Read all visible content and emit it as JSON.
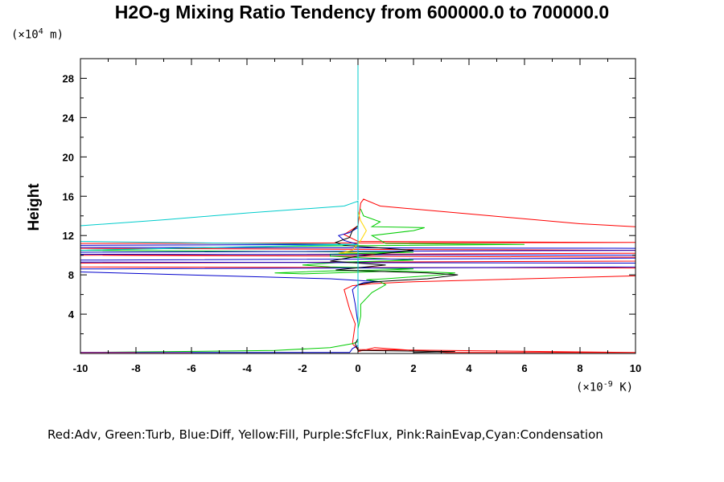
{
  "chart_data": {
    "type": "line",
    "title": "H2O-g Mixing Ratio Tendency from 600000.0 to 700000.0",
    "ylabel": "Height",
    "y_unit_prefix": "(×10",
    "y_unit_exp": "4",
    "y_unit_suffix": " m)",
    "x_unit_prefix": "(×10",
    "x_unit_exp": "-9",
    "x_unit_suffix": " K)",
    "xlim": [
      -10,
      10
    ],
    "ylim": [
      0,
      30
    ],
    "x_ticks": [
      "-10",
      "-8",
      "-6",
      "-4",
      "-2",
      "0",
      "2",
      "4",
      "6",
      "8",
      "10"
    ],
    "x_tick_values": [
      -10,
      -8,
      -6,
      -4,
      -2,
      0,
      2,
      4,
      6,
      8,
      10
    ],
    "y_ticks": [
      "4",
      "8",
      "12",
      "16",
      "20",
      "24",
      "28"
    ],
    "y_tick_values": [
      4,
      8,
      12,
      16,
      20,
      24,
      28
    ],
    "legend_text": "Red:Adv, Green:Turb, Blue:Diff, Yellow:Fill, Purple:SfcFlux, Pink:RainEvap,Cyan:Condensation",
    "series": [
      {
        "color": "#ff0000",
        "points": [
          [
            0,
            0.2
          ],
          [
            0.6,
            0.6
          ],
          [
            2,
            0.3
          ],
          [
            3.2,
            0.1
          ],
          [
            10,
            0.1
          ],
          [
            10,
            0.1
          ],
          [
            0,
            0.4
          ],
          [
            -0.2,
            1
          ],
          [
            -0.1,
            3
          ],
          [
            -0.3,
            4.5
          ],
          [
            -0.5,
            6.5
          ],
          [
            -0.2,
            6.9
          ],
          [
            0.5,
            7.1
          ],
          [
            2,
            7.3
          ],
          [
            10,
            7.9
          ],
          [
            10,
            8.7
          ],
          [
            -10,
            8.8
          ],
          [
            -10,
            9.2
          ],
          [
            10,
            9.4
          ],
          [
            10,
            9.8
          ],
          [
            -10,
            10
          ],
          [
            10,
            10.2
          ],
          [
            10,
            10.5
          ],
          [
            -10,
            10.7
          ],
          [
            -10,
            11.2
          ],
          [
            10,
            11.3
          ],
          [
            10,
            11.3
          ],
          [
            0,
            11.4
          ],
          [
            -0.5,
            12.1
          ],
          [
            0,
            13
          ],
          [
            0.1,
            15.3
          ],
          [
            0.2,
            15.7
          ],
          [
            0.8,
            15
          ],
          [
            4,
            14.2
          ],
          [
            6,
            13.7
          ],
          [
            8,
            13.2
          ],
          [
            10,
            12.9
          ]
        ]
      },
      {
        "color": "#00cc00",
        "points": [
          [
            -10,
            0.1
          ],
          [
            -3,
            0.3
          ],
          [
            -1,
            0.6
          ],
          [
            -0.2,
            1
          ],
          [
            0,
            1.2
          ],
          [
            0,
            2.5
          ],
          [
            0.1,
            3.8
          ],
          [
            0.1,
            5
          ],
          [
            0.5,
            6.2
          ],
          [
            1,
            7
          ],
          [
            0.8,
            7.3
          ],
          [
            0.3,
            7.5
          ],
          [
            1,
            7.6
          ],
          [
            3,
            8
          ],
          [
            3.5,
            8.2
          ],
          [
            1.5,
            8.4
          ],
          [
            -2,
            8.1
          ],
          [
            -3,
            8.2
          ],
          [
            -1,
            8.4
          ],
          [
            1,
            8.5
          ],
          [
            2,
            8.6
          ],
          [
            -1,
            8.8
          ],
          [
            -2,
            9
          ],
          [
            -0.5,
            9.3
          ],
          [
            2,
            9.5
          ],
          [
            -1,
            9.9
          ],
          [
            -1,
            10.1
          ],
          [
            2,
            10.3
          ],
          [
            -10,
            10.5
          ],
          [
            -3,
            10.9
          ],
          [
            6,
            11.1
          ],
          [
            1,
            11.2
          ],
          [
            0.5,
            12
          ],
          [
            2,
            12.5
          ],
          [
            2.4,
            12.8
          ],
          [
            0.5,
            12.9
          ],
          [
            0.8,
            13.4
          ],
          [
            0.2,
            14
          ],
          [
            0.1,
            14.7
          ]
        ]
      },
      {
        "color": "#0000cc",
        "points": [
          [
            -10,
            0.1
          ],
          [
            -0.3,
            0.1
          ],
          [
            -0.2,
            0.5
          ],
          [
            0,
            0.8
          ],
          [
            0,
            1
          ],
          [
            0,
            3
          ],
          [
            -0.1,
            5
          ],
          [
            -0.2,
            6.5
          ],
          [
            0,
            7
          ],
          [
            0.2,
            7.2
          ],
          [
            0.8,
            7.3
          ],
          [
            -1,
            7.6
          ],
          [
            -10,
            8.3
          ],
          [
            -10,
            8.6
          ],
          [
            10,
            8.8
          ],
          [
            10,
            9.2
          ],
          [
            -10,
            9.3
          ],
          [
            -10,
            9.5
          ],
          [
            10,
            9.7
          ],
          [
            10,
            10
          ],
          [
            -10,
            10.1
          ],
          [
            -10,
            10.3
          ],
          [
            10,
            10.5
          ],
          [
            10,
            10.7
          ],
          [
            -10,
            10.8
          ],
          [
            -10,
            11
          ],
          [
            0,
            11.1
          ],
          [
            -0.5,
            11.5
          ],
          [
            -0.7,
            12
          ],
          [
            -0.3,
            12.3
          ],
          [
            0,
            12.8
          ],
          [
            0,
            13.8
          ]
        ]
      },
      {
        "color": "#000000",
        "points": [
          [
            2,
            0.1
          ],
          [
            3.5,
            0.2
          ],
          [
            0,
            0.3
          ],
          [
            -0.1,
            1
          ],
          [
            0,
            1.5
          ],
          [
            0,
            6.5
          ],
          [
            0,
            7
          ],
          [
            0.6,
            7.3
          ],
          [
            2.5,
            7.6
          ],
          [
            3.6,
            8
          ],
          [
            2.5,
            8.2
          ],
          [
            -0.8,
            8.5
          ],
          [
            1,
            9
          ],
          [
            -1,
            9.4
          ],
          [
            0,
            9.9
          ],
          [
            2,
            10.5
          ],
          [
            -0.5,
            11
          ],
          [
            -0.8,
            11.3
          ],
          [
            -0.3,
            11.8
          ],
          [
            -0.2,
            12.5
          ],
          [
            0,
            13
          ],
          [
            0,
            14
          ]
        ]
      },
      {
        "color": "#ffd800",
        "points": [
          [
            0,
            10.3
          ],
          [
            -0.7,
            10.2
          ],
          [
            -0.2,
            10.5
          ],
          [
            0.1,
            11.5
          ],
          [
            0.3,
            12.5
          ],
          [
            0.1,
            13.5
          ],
          [
            0,
            14.5
          ]
        ]
      },
      {
        "color": "#800080",
        "points": [
          [
            -10,
            0.1
          ],
          [
            -8,
            0.1
          ]
        ]
      },
      {
        "color": "#ff66cc",
        "points": [
          [
            -10,
            0.05
          ],
          [
            -6,
            0.05
          ]
        ]
      },
      {
        "color": "#00cccc",
        "points": [
          [
            0,
            0
          ],
          [
            0,
            15.5
          ],
          [
            -0.5,
            15
          ],
          [
            -4,
            14.3
          ],
          [
            -7,
            13.6
          ],
          [
            -10,
            13
          ],
          [
            -10,
            11.4
          ],
          [
            -4,
            11.2
          ],
          [
            0,
            11.1
          ],
          [
            -10,
            10.5
          ]
        ]
      },
      {
        "color": "#00cccc",
        "points": [
          [
            0,
            15.6
          ],
          [
            0,
            30
          ]
        ]
      }
    ]
  }
}
